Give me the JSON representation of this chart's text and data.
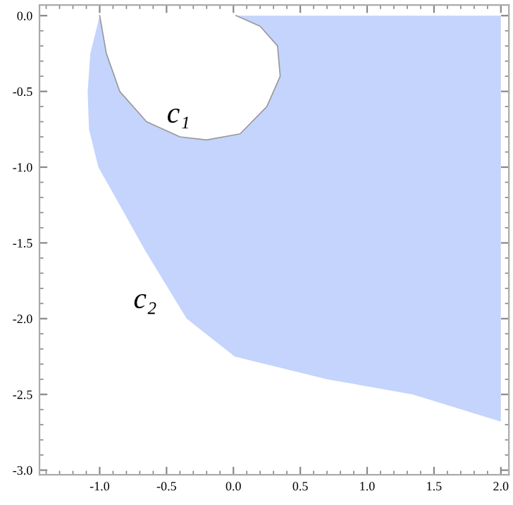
{
  "chart_data": {
    "type": "area",
    "series": [
      {
        "color": "#c4d4fc",
        "x": [
          0.02,
          2.0,
          2.0,
          1.34,
          0.7,
          0.01,
          -0.35,
          -0.66,
          -0.85,
          -1.01,
          -1.08,
          -1.09,
          -1.07,
          -1.0,
          -0.95,
          -0.85,
          -0.65,
          -0.4,
          -0.2,
          0.05,
          0.25,
          0.35,
          0.33,
          0.2,
          0.02
        ],
        "values": [
          0,
          0,
          -2.68,
          -2.5,
          -2.4,
          -2.25,
          -2.0,
          -1.55,
          -1.25,
          -1.0,
          -0.75,
          -0.5,
          -0.25,
          0,
          -0.25,
          -0.5,
          -0.7,
          -0.8,
          -0.82,
          -0.78,
          -0.6,
          -0.4,
          -0.2,
          -0.07,
          0
        ]
      }
    ],
    "annotations": [
      "c₁",
      "c₂"
    ],
    "xlim": [
      -1.45,
      2.06
    ],
    "ylim": [
      -3.03,
      0.07
    ],
    "xticks": [
      {
        "value": -1.0,
        "label": "-1.0"
      },
      {
        "value": -0.5,
        "label": "-0.5"
      },
      {
        "value": 0,
        "label": "0.0"
      },
      {
        "value": 0.5,
        "label": "0.5"
      },
      {
        "value": 1.0,
        "label": "1.0"
      },
      {
        "value": 1.5,
        "label": "1.5"
      },
      {
        "value": 2,
        "label": "2.0"
      }
    ],
    "yticks": [
      {
        "value": 0,
        "label": "0.0"
      },
      {
        "value": -0.5,
        "label": "-0.5"
      },
      {
        "value": -1.0,
        "label": "-1.0"
      },
      {
        "value": -1.5,
        "label": "-1.5"
      },
      {
        "value": -2.0,
        "label": "-2.0"
      },
      {
        "value": -2.5,
        "label": "-2.5"
      },
      {
        "value": -3.0,
        "label": "-3.0"
      }
    ],
    "grid": false
  }
}
